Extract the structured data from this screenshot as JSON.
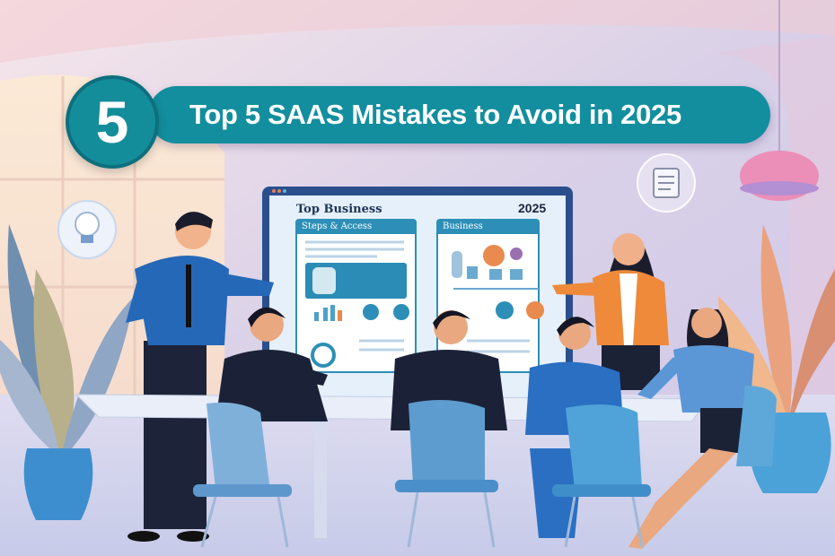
{
  "banner": {
    "badge_number": "5",
    "title": "Top 5 SAAS Mistakes to Avoid in 2025",
    "color": "#138e9e"
  },
  "screen": {
    "title": "Top Business",
    "year": "2025",
    "left_panel_heading": "Steps & Access",
    "right_panel_heading": "Business"
  },
  "colors": {
    "background_top": "#f3e3ee",
    "background_bottom": "#c9c7e4",
    "chair_blue": "#4a8fc9",
    "accent_orange": "#e98a4f"
  },
  "icons": [
    "lightbulb-icon",
    "document-icon",
    "pendant-lamp-icon"
  ]
}
